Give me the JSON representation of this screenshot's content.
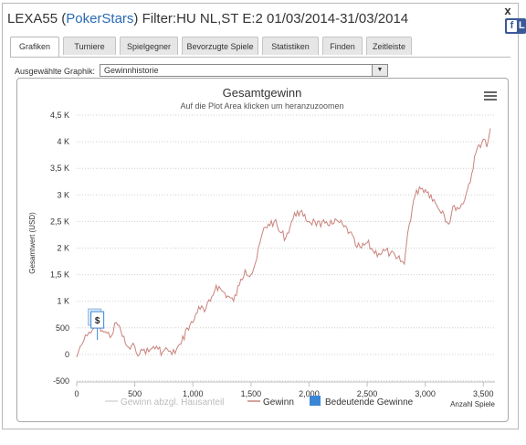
{
  "window": {
    "title_prefix": "LEXA55 (",
    "title_site": "PokerStars",
    "title_suffix": ") Filter:HU NL,ST E:2 01/03/2014-31/03/2014",
    "close_label": "x",
    "fb_label": "L"
  },
  "tabs": [
    {
      "label": "Grafiken",
      "active": true
    },
    {
      "label": "Turniere",
      "active": false
    },
    {
      "label": "Spielgegner",
      "active": false
    },
    {
      "label": "Bevorzugte Spiele",
      "active": false
    },
    {
      "label": "Statistiken",
      "active": false
    },
    {
      "label": "Finden",
      "active": false
    },
    {
      "label": "Zeitleiste",
      "active": false
    }
  ],
  "graph_select": {
    "label": "Ausgewählte Graphik:",
    "value": "Gewinnhistorie"
  },
  "chart_data": {
    "type": "line",
    "title": "Gesamtgewinn",
    "subtitle": "Auf die Plot Area klicken um heranzuzoomen",
    "xlabel": "Anzahl Spiele",
    "ylabel": "Gesamtwert (USD)",
    "xlim": [
      0,
      3600
    ],
    "ylim": [
      -500,
      4500
    ],
    "x_ticks": [
      0,
      500,
      1000,
      1500,
      2000,
      2500,
      3000,
      3500
    ],
    "x_tick_labels": [
      "0",
      "500",
      "1,000",
      "1,500",
      "2,000",
      "2,500",
      "3,000",
      "3,500"
    ],
    "y_ticks": [
      -500,
      0,
      500,
      1000,
      1500,
      2000,
      2500,
      3000,
      3500,
      4000,
      4500
    ],
    "y_tick_labels": [
      "-500",
      "0",
      "500",
      "1 K",
      "1,5 K",
      "2 K",
      "2,5 K",
      "3 K",
      "3,5 K",
      "4 K",
      "4,5 K"
    ],
    "grid": true,
    "legend_position": "bottom",
    "colors": {
      "gewinn": "#c9837c",
      "abzgl": "#d6d6d6",
      "bedeutende": "#3a86d6"
    },
    "series": [
      {
        "name": "Gewinn",
        "x": [
          0,
          30,
          60,
          90,
          120,
          150,
          180,
          220,
          260,
          300,
          340,
          380,
          420,
          460,
          500,
          540,
          580,
          620,
          660,
          700,
          740,
          780,
          820,
          860,
          900,
          950,
          1000,
          1050,
          1100,
          1150,
          1200,
          1250,
          1300,
          1350,
          1400,
          1450,
          1500,
          1550,
          1600,
          1650,
          1700,
          1750,
          1800,
          1850,
          1900,
          1950,
          2000,
          2050,
          2100,
          2150,
          2200,
          2250,
          2300,
          2350,
          2400,
          2450,
          2500,
          2550,
          2600,
          2650,
          2700,
          2750,
          2800,
          2820,
          2850,
          2900,
          2950,
          3000,
          3050,
          3100,
          3150,
          3200,
          3250,
          3300,
          3350,
          3400,
          3450,
          3500,
          3530,
          3560
        ],
        "values": [
          -50,
          150,
          250,
          350,
          400,
          500,
          600,
          450,
          400,
          350,
          600,
          450,
          200,
          100,
          150,
          0,
          100,
          50,
          150,
          100,
          50,
          100,
          0,
          100,
          200,
          500,
          600,
          900,
          800,
          1000,
          1300,
          1200,
          1100,
          1000,
          1300,
          1600,
          1500,
          1800,
          2300,
          2450,
          2500,
          2300,
          2200,
          2500,
          2700,
          2600,
          2500,
          2500,
          2400,
          2500,
          2450,
          2500,
          2400,
          2300,
          2050,
          2000,
          2100,
          1950,
          1900,
          1950,
          1900,
          1800,
          1750,
          1700,
          2300,
          2900,
          3150,
          3100,
          3000,
          2800,
          2700,
          2450,
          2800,
          2750,
          3000,
          3400,
          3900,
          4050,
          3900,
          4250
        ]
      },
      {
        "name": "Gewinn abzgl. Hausanteil",
        "x": [],
        "values": []
      },
      {
        "name": "Bedeutende Gewinne",
        "x": [
          170
        ],
        "values": [
          650
        ],
        "marker_label": "$"
      }
    ]
  }
}
